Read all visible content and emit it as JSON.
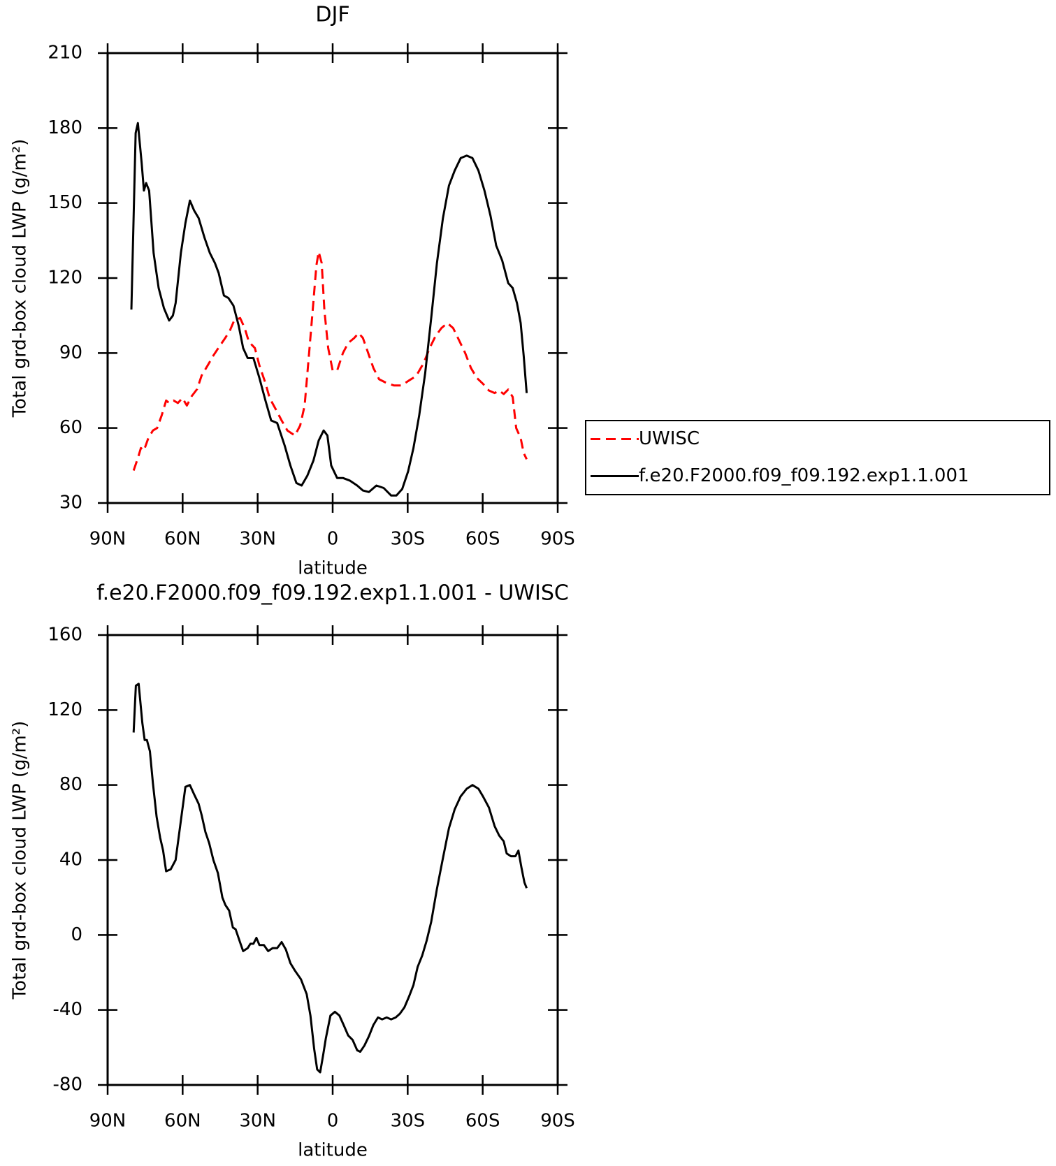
{
  "chart_data": [
    {
      "type": "line",
      "title": "DJF",
      "x_label": "latitude",
      "y_label": "Total grd-box cloud LWP (g/m²)",
      "xlim": [
        90,
        -90
      ],
      "xticks": [
        {
          "value": 90,
          "label": "90N"
        },
        {
          "value": 60,
          "label": "60N"
        },
        {
          "value": 30,
          "label": "30N"
        },
        0,
        {
          "value": -30,
          "label": "30S"
        },
        {
          "value": -60,
          "label": "60S"
        },
        {
          "value": -90,
          "label": "90S"
        }
      ],
      "ylim": [
        30,
        210
      ],
      "yticks": [
        30,
        60,
        90,
        120,
        150,
        180,
        210
      ],
      "legend": true,
      "legend_position": "right",
      "series": [
        {
          "name": "UWISC",
          "color": "#ff0000",
          "dash": "dashed",
          "x": [
            79.6,
            77.9,
            76.7,
            75.5,
            73.7,
            71.9,
            70.2,
            68.4,
            66.6,
            65.4,
            63.6,
            61.9,
            60.1,
            58.3,
            56.5,
            54.2,
            52.4,
            50.0,
            47.7,
            45.3,
            43.0,
            41.1,
            39.4,
            37.0,
            35.2,
            33.5,
            31.1,
            29.3,
            26.9,
            25.2,
            22.8,
            20.4,
            18.1,
            15.1,
            13.0,
            11.2,
            9.5,
            8.0,
            6.5,
            5.6,
            4.4,
            3.3,
            1.8,
            0,
            -1.8,
            -4.1,
            -6.2,
            -8.6,
            -10.4,
            -12.1,
            -14.2,
            -16.3,
            -18.6,
            -21.6,
            -24.6,
            -27.5,
            -30.5,
            -33.4,
            -36.4,
            -38.8,
            -41.1,
            -43.5,
            -45.9,
            -48.2,
            -50.6,
            -53.0,
            -55.3,
            -57.7,
            -60.1,
            -62.5,
            -64.8,
            -66.6,
            -68.4,
            -70.2,
            -72.0,
            -73.4,
            -75.2,
            -76.4,
            -77.6
          ],
          "values": [
            43,
            48,
            52,
            51,
            56,
            59,
            60,
            65,
            71,
            70,
            71,
            70,
            72,
            69,
            72.6,
            75.6,
            81,
            85,
            89,
            92.6,
            96,
            99,
            103,
            104,
            100,
            94.5,
            92,
            85,
            78,
            72,
            67.6,
            63,
            59,
            57,
            61,
            69,
            89,
            107,
            125,
            130.5,
            126,
            107,
            92,
            83,
            83,
            90,
            94,
            96,
            98,
            96,
            90,
            84,
            79.5,
            78,
            77,
            77,
            79,
            80.8,
            86,
            92,
            96.7,
            100,
            102,
            100,
            95,
            90,
            84,
            80,
            77.7,
            75,
            74,
            75,
            73.6,
            75.4,
            72.4,
            60,
            56,
            50,
            47.5
          ]
        },
        {
          "name": "f.e20.F2000.f09_f09.192.exp1.1.001",
          "color": "#000000",
          "dash": "solid",
          "x": [
            80.5,
            78.8,
            77.9,
            76.4,
            75.5,
            74.6,
            73.4,
            71.6,
            69.6,
            67.5,
            65.4,
            63.9,
            62.8,
            60.7,
            58.9,
            57.1,
            55.4,
            53.6,
            51.2,
            49.1,
            47.1,
            45.6,
            43.5,
            41.7,
            39.7,
            37.6,
            35.8,
            34.0,
            31.7,
            29.3,
            26.9,
            24.6,
            22.2,
            19.2,
            16.9,
            14.5,
            12.4,
            10.1,
            7.7,
            5.6,
            3.6,
            2.1,
            0.6,
            -1.8,
            -4.1,
            -6.8,
            -9.8,
            -12.1,
            -14.5,
            -17.5,
            -20.4,
            -23.4,
            -25.5,
            -27.8,
            -30.2,
            -32.3,
            -34.6,
            -37.0,
            -39.4,
            -41.7,
            -44.1,
            -46.5,
            -48.8,
            -51.2,
            -53.6,
            -55.9,
            -58.3,
            -60.7,
            -63.1,
            -65.4,
            -67.8,
            -70.2,
            -72.0,
            -73.7,
            -75.2,
            -76.4,
            -77.6
          ],
          "values": [
            107.4,
            178,
            182,
            166,
            155,
            158,
            155,
            130,
            116,
            108,
            103,
            105,
            110,
            130,
            142,
            151,
            147,
            144,
            136,
            130,
            126,
            122,
            113,
            112,
            109,
            101,
            92,
            88,
            88,
            80,
            71,
            63,
            62,
            53,
            45,
            38,
            37,
            41,
            47,
            55,
            59,
            57,
            45,
            40,
            40,
            39,
            37,
            35,
            34.4,
            37,
            36,
            33,
            33,
            35.6,
            42.7,
            52,
            65,
            82,
            104,
            126,
            144,
            157,
            163,
            168,
            169,
            168,
            163,
            155,
            145,
            133,
            127,
            118,
            116,
            110,
            102,
            89,
            74
          ]
        }
      ]
    },
    {
      "type": "line",
      "title": "f.e20.F2000.f09_f09.192.exp1.1.001 - UWISC",
      "x_label": "latitude",
      "y_label": "Total grd-box cloud LWP (g/m²)",
      "xlim": [
        90,
        -90
      ],
      "xticks": [
        {
          "value": 90,
          "label": "90N"
        },
        {
          "value": 60,
          "label": "60N"
        },
        {
          "value": 30,
          "label": "30N"
        },
        0,
        {
          "value": -30,
          "label": "30S"
        },
        {
          "value": -60,
          "label": "60S"
        },
        {
          "value": -90,
          "label": "90S"
        }
      ],
      "ylim": [
        -80,
        160
      ],
      "yticks": [
        -80,
        -40,
        0,
        40,
        80,
        120,
        160
      ],
      "legend": false,
      "series": [
        {
          "color": "#000000",
          "dash": "solid",
          "x": [
            79.6,
            78.7,
            77.6,
            76.1,
            75.2,
            74.3,
            73.1,
            71.9,
            70.4,
            69.0,
            67.8,
            66.6,
            64.8,
            62.8,
            60.7,
            58.9,
            57.1,
            55.4,
            53.6,
            52.4,
            50.9,
            49.4,
            47.7,
            45.9,
            44.1,
            42.9,
            41.4,
            39.9,
            38.8,
            37.0,
            35.8,
            34.0,
            32.9,
            31.7,
            30.5,
            29.3,
            27.5,
            25.8,
            24.0,
            22.2,
            20.4,
            18.7,
            16.9,
            15.1,
            12.7,
            10.4,
            8.9,
            7.4,
            6.2,
            5.0,
            3.8,
            2.7,
            0.9,
            -0.9,
            -2.7,
            -4.4,
            -6.2,
            -8.0,
            -9.8,
            -11.0,
            -12.7,
            -14.5,
            -16.3,
            -18.1,
            -19.8,
            -21.6,
            -23.4,
            -25.2,
            -26.9,
            -28.7,
            -30.5,
            -32.3,
            -34.0,
            -35.8,
            -37.6,
            -39.4,
            -41.7,
            -44.1,
            -46.5,
            -48.8,
            -51.2,
            -53.6,
            -55.9,
            -58.3,
            -60.1,
            -62.5,
            -64.8,
            -66.6,
            -68.4,
            -69.6,
            -71.3,
            -73.1,
            -74.3,
            -75.5,
            -76.7,
            -77.6
          ],
          "values": [
            108,
            133,
            134,
            113,
            104,
            104,
            98,
            81,
            63,
            52,
            45,
            34,
            35,
            40,
            61,
            79,
            80,
            75,
            70,
            64,
            55,
            49,
            40,
            33,
            20,
            16,
            13,
            4,
            3,
            -4,
            -8.6,
            -7,
            -4.7,
            -4.7,
            -1.5,
            -5.4,
            -5.4,
            -8.6,
            -7,
            -7,
            -3.8,
            -7.8,
            -15,
            -19,
            -23.6,
            -31.5,
            -43,
            -60.7,
            -71.7,
            -73.3,
            -64,
            -55,
            -43,
            -41,
            -43,
            -48,
            -53.6,
            -56,
            -61.5,
            -62.3,
            -59,
            -54,
            -48,
            -44,
            -45,
            -44,
            -45,
            -44,
            -42,
            -38.6,
            -33,
            -26.7,
            -17,
            -11,
            -3,
            7,
            24.6,
            41,
            57,
            67,
            74,
            78,
            80,
            78,
            74,
            68,
            58,
            53,
            50,
            43.5,
            42,
            42,
            45,
            36,
            28,
            25
          ]
        }
      ]
    }
  ]
}
